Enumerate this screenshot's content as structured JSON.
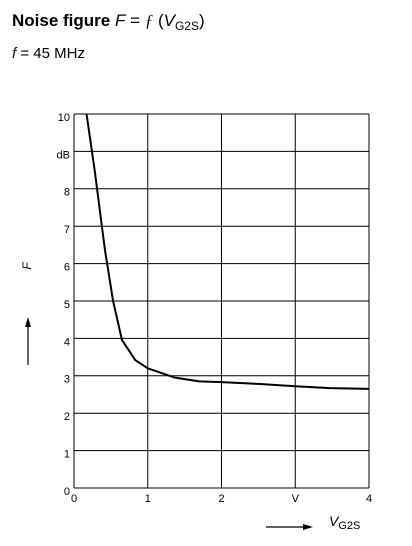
{
  "chart_data": {
    "type": "line",
    "title_parts": [
      "Noise figure ",
      "F",
      " = ",
      "ƒ",
      " (",
      "V",
      "G2S",
      ")"
    ],
    "subtitle_parts": [
      "f",
      " = 45 MHz"
    ],
    "y_label": "F",
    "x_label_parts": [
      "V",
      "G2S"
    ],
    "x": [
      0.17,
      0.28,
      0.42,
      0.53,
      0.65,
      0.83,
      1.0,
      1.37,
      1.7,
      2.0,
      2.52,
      3.0,
      3.47,
      4.0
    ],
    "series": [
      {
        "color": "#000000",
        "values": [
          10,
          8.5,
          6.36,
          5.0,
          3.96,
          3.42,
          3.2,
          2.95,
          2.85,
          2.83,
          2.78,
          2.72,
          2.67,
          2.65
        ]
      }
    ],
    "xlim": [
      0,
      4
    ],
    "xticks": [
      0,
      1,
      2,
      {
        "value": 3,
        "label": "V"
      },
      4
    ],
    "ylim": [
      0,
      10
    ],
    "yticks": [
      0,
      1,
      2,
      3,
      4,
      5,
      6,
      7,
      8,
      {
        "value": 9,
        "label": "dB"
      },
      10
    ],
    "grid": true
  }
}
